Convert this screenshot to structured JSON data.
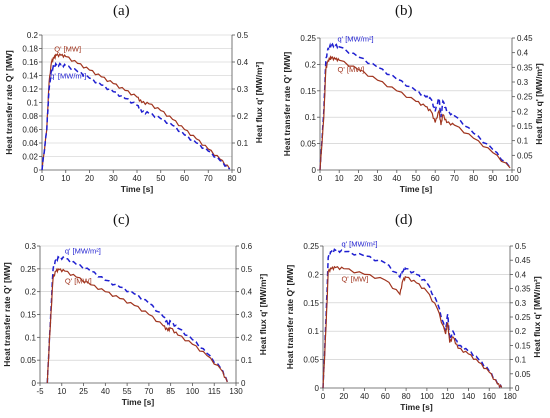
{
  "figure": {
    "panel_labels": [
      "(a)",
      "(b)",
      "(c)",
      "(d)"
    ]
  },
  "colors": {
    "Q": "#a0341e",
    "q": "#1f1fd0",
    "grid": "#c8c8c8",
    "axis": "#555555"
  },
  "chart_data": [
    {
      "type": "line",
      "panel": "(a)",
      "xlabel": "Time [s]",
      "ylabel": "Heat transfer rate Q' [MW]",
      "y2label": "Heat flux q' [MW/m²]",
      "xlim": [
        0,
        80
      ],
      "ylim": [
        0,
        0.2
      ],
      "y2lim": [
        0,
        0.5
      ],
      "xticks": [
        0,
        10,
        20,
        30,
        40,
        50,
        60,
        70,
        80
      ],
      "yticks": [
        0,
        0.02,
        0.04,
        0.06,
        0.08,
        0.1,
        0.12,
        0.14,
        0.16,
        0.18,
        0.2
      ],
      "y2ticks": [
        0,
        0.1,
        0.2,
        0.3,
        0.4,
        0.5
      ],
      "grid": "horizontal",
      "series": [
        {
          "name": "Q' [MW]",
          "axis": "left",
          "style": "solid",
          "color_key": "Q",
          "x": [
            0,
            2,
            3,
            4,
            5,
            6,
            8,
            10,
            15,
            20,
            25,
            30,
            35,
            40,
            42,
            45,
            50,
            55,
            60,
            65,
            70,
            75,
            79
          ],
          "y": [
            0,
            0.06,
            0.13,
            0.16,
            0.166,
            0.17,
            0.17,
            0.168,
            0.158,
            0.148,
            0.138,
            0.128,
            0.118,
            0.108,
            0.1,
            0.098,
            0.088,
            0.075,
            0.06,
            0.046,
            0.031,
            0.016,
            0.002
          ]
        },
        {
          "name": "q' [MW/m²]",
          "axis": "right",
          "style": "dashed",
          "color_key": "q",
          "x": [
            0,
            2,
            3,
            4,
            5,
            6,
            8,
            10,
            15,
            20,
            25,
            30,
            35,
            40,
            42,
            45,
            50,
            55,
            60,
            65,
            70,
            75,
            79
          ],
          "y": [
            0,
            0.15,
            0.3,
            0.37,
            0.385,
            0.39,
            0.39,
            0.385,
            0.365,
            0.34,
            0.315,
            0.29,
            0.265,
            0.24,
            0.215,
            0.21,
            0.19,
            0.165,
            0.13,
            0.1,
            0.07,
            0.035,
            0.003
          ]
        }
      ]
    },
    {
      "type": "line",
      "panel": "(b)",
      "xlabel": "Time [s]",
      "ylabel": "Heat transfer rate Q' [MW]",
      "y2label": "Heat flux q' [MW/m²]",
      "xlim": [
        0,
        100
      ],
      "ylim": [
        0,
        0.25
      ],
      "y2lim": [
        0,
        0.45
      ],
      "xticks": [
        0,
        10,
        20,
        30,
        40,
        50,
        60,
        70,
        80,
        90,
        100
      ],
      "yticks": [
        0,
        0.05,
        0.1,
        0.15,
        0.2,
        0.25
      ],
      "y2ticks": [
        0,
        0.05,
        0.1,
        0.15,
        0.2,
        0.25,
        0.3,
        0.35,
        0.4,
        0.45
      ],
      "grid": "horizontal",
      "series": [
        {
          "name": "q' [MW/m²]",
          "axis": "right",
          "style": "dashed",
          "color_key": "q",
          "x": [
            0,
            2,
            3,
            4,
            5,
            6,
            8,
            10,
            20,
            30,
            40,
            50,
            55,
            58,
            60,
            62,
            63,
            64,
            66,
            70,
            80,
            90,
            99
          ],
          "y": [
            0,
            0.2,
            0.37,
            0.41,
            0.42,
            0.425,
            0.425,
            0.42,
            0.385,
            0.35,
            0.31,
            0.27,
            0.25,
            0.24,
            0.2,
            0.245,
            0.18,
            0.235,
            0.2,
            0.185,
            0.125,
            0.07,
            0.008
          ]
        },
        {
          "name": "Q' [MW]",
          "axis": "left",
          "style": "solid",
          "color_key": "Q",
          "x": [
            0,
            2,
            3,
            4,
            5,
            6,
            8,
            10,
            20,
            30,
            40,
            50,
            55,
            58,
            60,
            62,
            63,
            64,
            66,
            70,
            80,
            90,
            99
          ],
          "y": [
            0,
            0.1,
            0.19,
            0.205,
            0.21,
            0.212,
            0.21,
            0.208,
            0.19,
            0.17,
            0.15,
            0.13,
            0.12,
            0.11,
            0.09,
            0.112,
            0.085,
            0.105,
            0.09,
            0.085,
            0.06,
            0.033,
            0.004
          ]
        }
      ]
    },
    {
      "type": "line",
      "panel": "(c)",
      "xlabel": "Time [s]",
      "ylabel": "Heat transfer rate Q' [MW]",
      "y2label": "Heat flux q' [MW/m²]",
      "xlim": [
        -5,
        130
      ],
      "ylim": [
        0,
        0.3
      ],
      "y2lim": [
        0,
        0.6
      ],
      "xticks": [
        -5,
        10,
        25,
        40,
        55,
        70,
        85,
        100,
        115,
        130
      ],
      "yticks": [
        0,
        0.05,
        0.1,
        0.15,
        0.2,
        0.25,
        0.3
      ],
      "y2ticks": [
        0,
        0.1,
        0.2,
        0.3,
        0.4,
        0.5,
        0.6
      ],
      "grid": "horizontal",
      "series": [
        {
          "name": "q' [MW/m²]",
          "axis": "right",
          "style": "dashed",
          "color_key": "q",
          "x": [
            0,
            2,
            4,
            6,
            8,
            12,
            20,
            30,
            40,
            50,
            60,
            70,
            80,
            83,
            85,
            90,
            100,
            110,
            120,
            124
          ],
          "y": [
            0,
            0.25,
            0.5,
            0.54,
            0.55,
            0.545,
            0.52,
            0.49,
            0.45,
            0.42,
            0.39,
            0.35,
            0.29,
            0.26,
            0.27,
            0.24,
            0.19,
            0.13,
            0.06,
            0.005
          ]
        },
        {
          "name": "Q' [MW]",
          "axis": "left",
          "style": "solid",
          "color_key": "Q",
          "x": [
            0,
            2,
            4,
            6,
            8,
            12,
            20,
            30,
            40,
            50,
            60,
            70,
            80,
            83,
            85,
            90,
            100,
            110,
            120,
            124
          ],
          "y": [
            0,
            0.12,
            0.23,
            0.245,
            0.248,
            0.245,
            0.232,
            0.215,
            0.2,
            0.185,
            0.17,
            0.15,
            0.125,
            0.115,
            0.12,
            0.105,
            0.085,
            0.06,
            0.028,
            0.002
          ]
        }
      ]
    },
    {
      "type": "line",
      "panel": "(d)",
      "xlabel": "Time [s]",
      "ylabel": "Heat transfer rate Q' [MW]",
      "y2label": "Heat flux q' [MW/m²]",
      "xlim": [
        0,
        180
      ],
      "ylim": [
        0,
        0.25
      ],
      "y2lim": [
        0,
        0.5
      ],
      "xticks": [
        0,
        20,
        40,
        60,
        80,
        100,
        120,
        140,
        160,
        180
      ],
      "yticks": [
        0,
        0.05,
        0.1,
        0.15,
        0.2,
        0.25
      ],
      "y2ticks": [
        0,
        0.05,
        0.1,
        0.15,
        0.2,
        0.25,
        0.3,
        0.35,
        0.4,
        0.45,
        0.5
      ],
      "grid": "horizontal",
      "series": [
        {
          "name": "q' [MW/m²]",
          "axis": "right",
          "style": "dashed",
          "color_key": "q",
          "x": [
            0,
            3,
            5,
            8,
            12,
            20,
            40,
            60,
            74,
            77,
            80,
            90,
            100,
            110,
            118,
            120,
            122,
            125,
            130,
            140,
            150,
            160,
            168,
            172
          ],
          "y": [
            0,
            0.25,
            0.46,
            0.48,
            0.485,
            0.48,
            0.465,
            0.44,
            0.39,
            0.41,
            0.42,
            0.4,
            0.37,
            0.3,
            0.2,
            0.26,
            0.17,
            0.2,
            0.15,
            0.13,
            0.1,
            0.06,
            0.015,
            0.002
          ]
        },
        {
          "name": "Q' [MW]",
          "axis": "left",
          "style": "solid",
          "color_key": "Q",
          "x": [
            0,
            3,
            5,
            8,
            12,
            20,
            40,
            60,
            74,
            77,
            80,
            90,
            100,
            110,
            118,
            120,
            122,
            125,
            130,
            140,
            150,
            160,
            168,
            172
          ],
          "y": [
            0,
            0.11,
            0.205,
            0.21,
            0.212,
            0.21,
            0.2,
            0.19,
            0.165,
            0.19,
            0.195,
            0.185,
            0.17,
            0.14,
            0.095,
            0.115,
            0.08,
            0.09,
            0.07,
            0.06,
            0.045,
            0.028,
            0.007,
            0.001
          ]
        }
      ]
    }
  ]
}
